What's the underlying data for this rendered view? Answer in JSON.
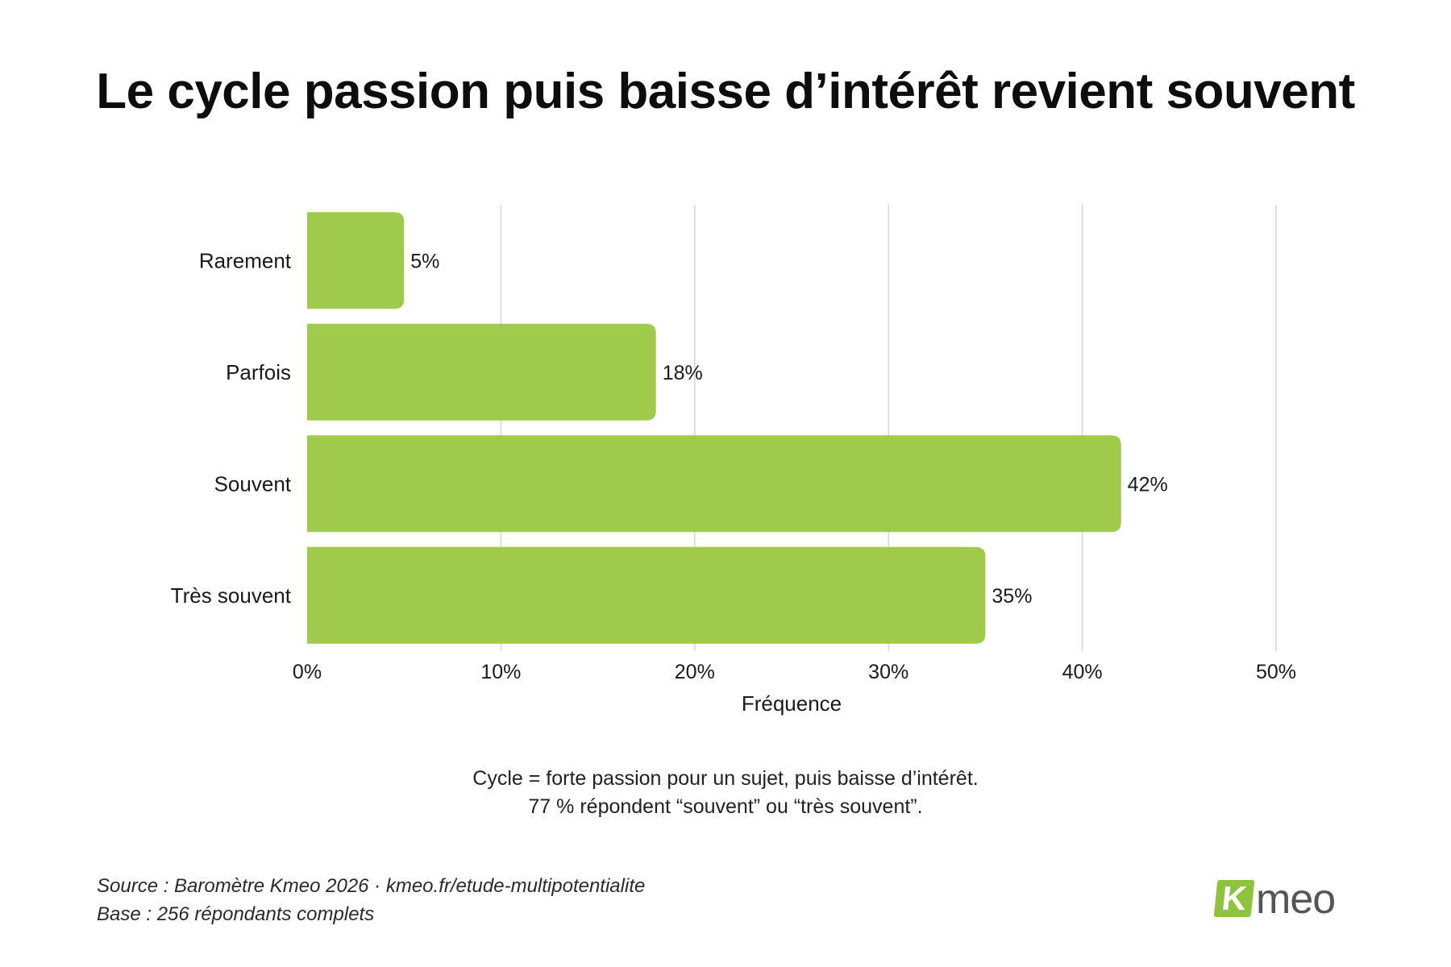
{
  "title": "Le cycle passion puis baisse d’intérêt revient souvent",
  "chart_data": {
    "type": "bar",
    "orientation": "horizontal",
    "categories": [
      "Rarement",
      "Parfois",
      "Souvent",
      "Très souvent"
    ],
    "values": [
      5,
      18,
      42,
      35
    ],
    "value_labels": [
      "5%",
      "18%",
      "42%",
      "35%"
    ],
    "xlabel": "Fréquence",
    "ylabel": "",
    "xlim": [
      0,
      50
    ],
    "xticks": [
      0,
      10,
      20,
      30,
      40,
      50
    ],
    "xtick_labels": [
      "0%",
      "10%",
      "20%",
      "30%",
      "40%",
      "50%"
    ],
    "grid": "vertical",
    "bar_color": "#a0ca4b",
    "grid_color": "#d6d6d6"
  },
  "notes": {
    "line1": "Cycle = forte passion pour un sujet, puis baisse d’intérêt.",
    "line2": "77 % répondent “souvent” ou “très souvent”."
  },
  "source": {
    "line1": "Source : Baromètre Kmeo 2026 · kmeo.fr/etude-multipotentialite",
    "line2": "Base : 256 répondants complets"
  },
  "logo": {
    "letter": "K",
    "text": "meo",
    "color": "#8fc33f"
  }
}
